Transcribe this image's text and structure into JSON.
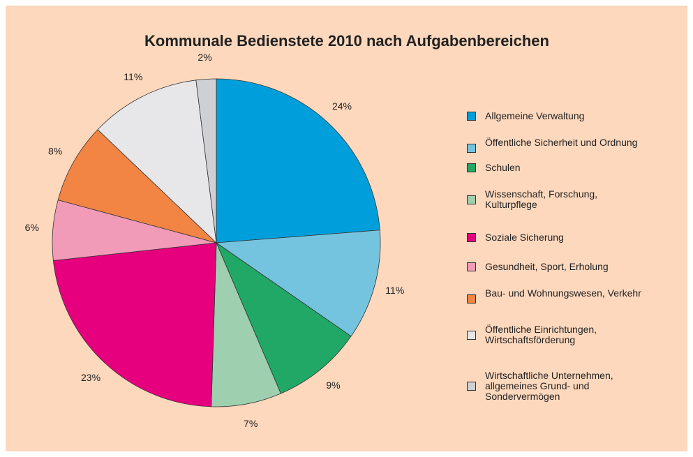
{
  "chart_data": {
    "type": "pie",
    "title": "Kommunale Bedienstete 2010 nach Aufgabenbereichen",
    "categories": [
      "Allgemeine Verwaltung",
      "Öffentliche Sicherheit und Ordnung",
      "Schulen",
      "Wissenschaft, Forschung, Kulturpflege",
      "Soziale Sicherung",
      "Gesundheit, Sport, Erholung",
      "Bau- und Wohnungswesen, Verkehr",
      "Öffentliche Einrichtungen, Wirtschaftsförderung",
      "Wirtschaftliche Unternehmen, allgemeines Grund- und Sondervermögen"
    ],
    "values": [
      24,
      11,
      9,
      7,
      23,
      6,
      8,
      11,
      2
    ],
    "value_labels": [
      "24%",
      "11%",
      "9%",
      "7%",
      "23%",
      "6%",
      "8%",
      "11%",
      "2%"
    ],
    "colors": [
      "#009fdb",
      "#74c4e0",
      "#21a867",
      "#9ecfae",
      "#e6007e",
      "#f29bb8",
      "#f28444",
      "#e7e7e9",
      "#cfd0d3"
    ],
    "legend": "right"
  }
}
